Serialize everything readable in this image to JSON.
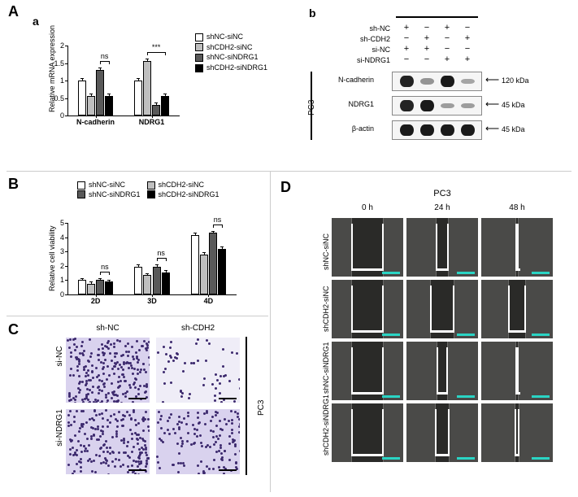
{
  "palette": {
    "series": [
      "#ffffff",
      "#bfbfbf",
      "#595959",
      "#000000"
    ],
    "series_labels": [
      "shNC-siNC",
      "shCDH2-siNC",
      "shNC-siNDRG1",
      "shCDH2-siNDRG1"
    ]
  },
  "panelA": {
    "labels": {
      "panel": "A",
      "sub_a": "a",
      "sub_b": "b"
    },
    "chart_a": {
      "type": "grouped-bar",
      "y_title": "Relative mRNA expression",
      "ylim": [
        0,
        2.0
      ],
      "yticks": [
        0,
        0.5,
        1.0,
        1.5,
        2.0
      ],
      "groups": [
        "N-cadherin",
        "NDRG1"
      ],
      "values": {
        "N-cadherin": [
          1.0,
          0.55,
          1.3,
          0.55
        ],
        "NDRG1": [
          1.0,
          1.55,
          0.3,
          0.55
        ]
      },
      "err": 0.08,
      "sig": [
        {
          "group": "N-cadherin",
          "between": [
            2,
            3
          ],
          "label": "ns"
        },
        {
          "group": "NDRG1",
          "between": [
            1,
            3
          ],
          "label": "***"
        }
      ]
    },
    "western_b": {
      "cell_line": "PC3",
      "conditions": [
        "sh-NC",
        "sh-CDH2",
        "si-NC",
        "si-NDRG1"
      ],
      "design": [
        [
          "+",
          "−",
          "+",
          "−"
        ],
        [
          "−",
          "+",
          "−",
          "+"
        ],
        [
          "+",
          "+",
          "−",
          "−"
        ],
        [
          "−",
          "−",
          "+",
          "+"
        ]
      ],
      "rows": [
        {
          "name": "N-cadherin",
          "kda": "120 kDa",
          "intensity": [
            0.95,
            0.25,
            1.0,
            0.15
          ]
        },
        {
          "name": "NDRG1",
          "kda": "45 kDa",
          "intensity": [
            0.95,
            1.0,
            0.2,
            0.2
          ]
        },
        {
          "name": "β-actin",
          "kda": "45 kDa",
          "intensity": [
            1.0,
            1.0,
            1.0,
            1.0
          ]
        }
      ]
    }
  },
  "panelB": {
    "label": "B",
    "type": "grouped-bar",
    "y_title": "Relative cell viability",
    "ylim": [
      0,
      5
    ],
    "yticks": [
      0,
      1,
      2,
      3,
      4,
      5
    ],
    "groups": [
      "2D",
      "3D",
      "4D"
    ],
    "values": {
      "2D": [
        1.0,
        0.75,
        1.0,
        0.9
      ],
      "3D": [
        1.95,
        1.35,
        1.95,
        1.55
      ],
      "4D": [
        4.15,
        2.8,
        4.3,
        3.2
      ]
    },
    "err": 0.15,
    "sig": [
      {
        "group": "2D",
        "between": [
          2,
          3
        ],
        "label": "ns"
      },
      {
        "group": "3D",
        "between": [
          2,
          3
        ],
        "label": "ns"
      },
      {
        "group": "4D",
        "between": [
          2,
          3
        ],
        "label": "ns"
      }
    ]
  },
  "panelC": {
    "label": "C",
    "cell_line": "PC3",
    "cols": [
      "sh-NC",
      "sh-CDH2"
    ],
    "rows": [
      "si-NC",
      "si-NDRG1"
    ],
    "density": [
      [
        1.0,
        0.25
      ],
      [
        0.85,
        0.55
      ]
    ],
    "stain_color": "#3d2a6e",
    "scale_bar_color": "#000000"
  },
  "panelD": {
    "label": "D",
    "cell_line": "PC3",
    "timepoints": [
      "0 h",
      "24 h",
      "48 h"
    ],
    "rows": [
      "shNC-siNC",
      "shCDH2-siNC",
      "shNC-siNDRG1",
      "shCDH2-siNDRG1"
    ],
    "gap_fraction": {
      "shNC-siNC": [
        0.45,
        0.18,
        0.05
      ],
      "shCDH2-siNC": [
        0.45,
        0.35,
        0.25
      ],
      "shNC-siNDRG1": [
        0.45,
        0.17,
        0.04
      ],
      "shCDH2-siNDRG1": [
        0.45,
        0.2,
        0.07
      ]
    },
    "bg_color": "#4a4a48",
    "gap_color": "#2a2a28",
    "scale_bar_color": "#2ad4c4",
    "gap_bar_color": "#ffffff"
  }
}
